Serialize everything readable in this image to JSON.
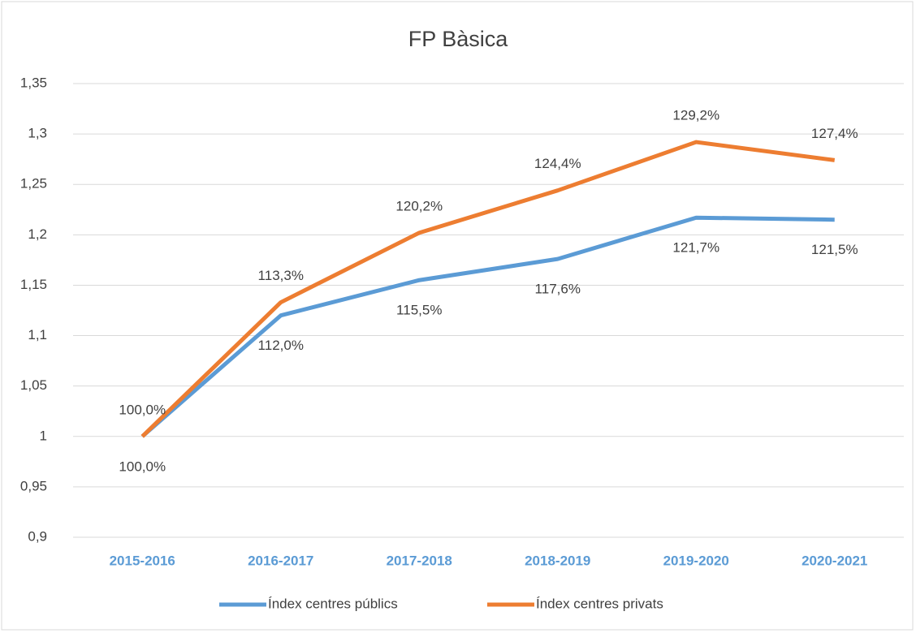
{
  "chart_data": {
    "type": "line",
    "title": "FP Bàsica",
    "categories": [
      "2015-2016",
      "2016-2017",
      "2017-2018",
      "2018-2019",
      "2019-2020",
      "2020-2021"
    ],
    "series": [
      {
        "name": "Índex centres públics",
        "color": "#5b9bd5",
        "values": [
          1.0,
          1.12,
          1.155,
          1.176,
          1.217,
          1.215
        ],
        "value_labels": [
          "100,0%",
          "112,0%",
          "115,5%",
          "117,6%",
          "121,7%",
          "121,5%"
        ]
      },
      {
        "name": "Índex centres privats",
        "color": "#ed7d31",
        "values": [
          1.0,
          1.133,
          1.202,
          1.244,
          1.292,
          1.274
        ],
        "value_labels": [
          "100,0%",
          "113,3%",
          "120,2%",
          "124,4%",
          "129,2%",
          "127,4%"
        ]
      }
    ],
    "ylim": [
      0.9,
      1.35
    ],
    "yticks": [
      {
        "value": 0.9,
        "label": "0,9"
      },
      {
        "value": 0.95,
        "label": "0,95"
      },
      1,
      {
        "value": 1.05,
        "label": "1,05"
      },
      {
        "value": 1.1,
        "label": "1,1"
      },
      {
        "value": 1.15,
        "label": "1,15"
      },
      {
        "value": 1.2,
        "label": "1,2"
      },
      {
        "value": 1.25,
        "label": "1,25"
      },
      {
        "value": 1.3,
        "label": "1,3"
      },
      {
        "value": 1.35,
        "label": "1,35"
      }
    ],
    "grid": true,
    "legend": "bottom"
  }
}
